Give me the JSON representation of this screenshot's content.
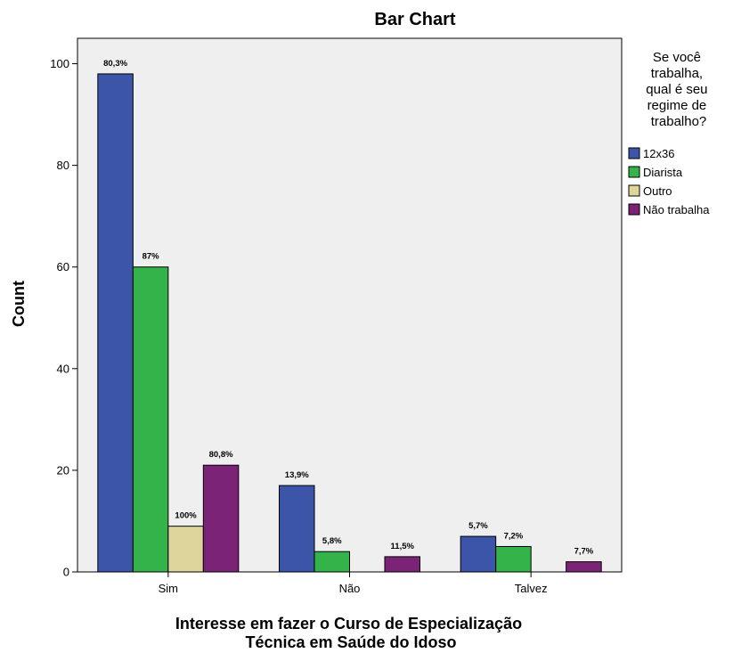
{
  "chart_data": {
    "type": "bar",
    "title": "Bar Chart",
    "xlabel_lines": [
      "Interesse em fazer o Curso de Especialização",
      "Técnica em Saúde do Idoso"
    ],
    "ylabel": "Count",
    "ylim": [
      0,
      105
    ],
    "yticks": [
      0,
      20,
      40,
      60,
      80,
      100
    ],
    "grid": false,
    "legend_position": "right",
    "legend_title_lines": [
      "Se você",
      "trabalha,",
      "qual é seu",
      "regime de",
      "trabalho?"
    ],
    "categories": [
      "Sim",
      "Não",
      "Talvez"
    ],
    "series": [
      {
        "name": "12x36",
        "color": "#3D55A8",
        "values": [
          98,
          17,
          7
        ],
        "labels": [
          "80,3%",
          "13,9%",
          "5,7%"
        ]
      },
      {
        "name": "Diarista",
        "color": "#33B34A",
        "values": [
          60,
          4,
          5
        ],
        "labels": [
          "87%",
          "5,8%",
          "7,2%"
        ]
      },
      {
        "name": "Outro",
        "color": "#DDD59B",
        "values": [
          9,
          0,
          0
        ],
        "labels": [
          "100%",
          "",
          ""
        ]
      },
      {
        "name": "Não trabalha",
        "color": "#7B2377",
        "values": [
          21,
          3,
          2
        ],
        "labels": [
          "80,8%",
          "11,5%",
          "7,7%"
        ]
      }
    ],
    "plot_background": "#EFEFEF"
  }
}
